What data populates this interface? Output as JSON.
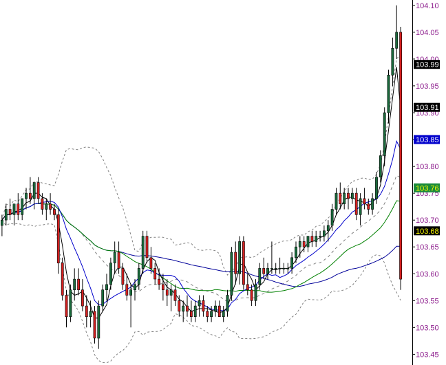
{
  "chart_data": {
    "type": "candlestick",
    "y_axis": {
      "position": "right",
      "range": [
        103.43,
        104.11
      ],
      "ticks": [
        "103.45",
        "103.50",
        "103.55",
        "103.60",
        "103.65",
        "103.70",
        "103.75",
        "103.80",
        "103.85",
        "103.90",
        "103.95",
        "104.00",
        "104.05",
        "104.10"
      ],
      "tick_values": [
        103.45,
        103.5,
        103.55,
        103.6,
        103.65,
        103.7,
        103.75,
        103.8,
        103.85,
        103.9,
        103.95,
        104.0,
        104.05,
        104.1
      ]
    },
    "grid": false,
    "colors": {
      "up_candle": "#1a6b3c",
      "down_candle": "#d42020",
      "axis_text": "#8b1a8b",
      "ma_fast": "#000000",
      "ma_mid_blue": "#0000cc",
      "ma_green": "#008000",
      "ma_slow_blue": "#000099",
      "bands": "#808080"
    },
    "price_labels": [
      {
        "text": "103.99",
        "value": 103.99,
        "bg": "#000000",
        "fg": "#ffffff"
      },
      {
        "text": "103.91",
        "value": 103.91,
        "bg": "#000000",
        "fg": "#ffffff"
      },
      {
        "text": "103.85",
        "value": 103.85,
        "bg": "#0000cc",
        "fg": "#ffffff"
      },
      {
        "text": "103.76",
        "value": 103.76,
        "bg": "#1a8a3a",
        "fg": "#ffff00"
      },
      {
        "text": "103.68",
        "value": 103.68,
        "bg": "#000000",
        "fg": "#ffff00"
      }
    ],
    "candles": [
      [
        103.69,
        103.71,
        103.67,
        103.7
      ],
      [
        103.7,
        103.73,
        103.69,
        103.72
      ],
      [
        103.72,
        103.74,
        103.7,
        103.71
      ],
      [
        103.71,
        103.73,
        103.69,
        103.73
      ],
      [
        103.73,
        103.75,
        103.7,
        103.71
      ],
      [
        103.71,
        103.74,
        103.7,
        103.74
      ],
      [
        103.74,
        103.76,
        103.72,
        103.75
      ],
      [
        103.75,
        103.78,
        103.73,
        103.74
      ],
      [
        103.74,
        103.77,
        103.72,
        103.77
      ],
      [
        103.77,
        103.78,
        103.73,
        103.74
      ],
      [
        103.74,
        103.75,
        103.71,
        103.72
      ],
      [
        103.72,
        103.74,
        103.7,
        103.73
      ],
      [
        103.73,
        103.75,
        103.71,
        103.72
      ],
      [
        103.72,
        103.73,
        103.7,
        103.71
      ],
      [
        103.71,
        103.72,
        103.6,
        103.62
      ],
      [
        103.62,
        103.63,
        103.55,
        103.56
      ],
      [
        103.56,
        103.57,
        103.5,
        103.52
      ],
      [
        103.52,
        103.58,
        103.51,
        103.57
      ],
      [
        103.57,
        103.61,
        103.55,
        103.59
      ],
      [
        103.59,
        103.61,
        103.56,
        103.57
      ],
      [
        103.57,
        103.59,
        103.53,
        103.54
      ],
      [
        103.54,
        103.56,
        103.5,
        103.52
      ],
      [
        103.52,
        103.55,
        103.5,
        103.53
      ],
      [
        103.53,
        103.54,
        103.47,
        103.48
      ],
      [
        103.48,
        103.55,
        103.46,
        103.54
      ],
      [
        103.54,
        103.58,
        103.53,
        103.57
      ],
      [
        103.57,
        103.6,
        103.55,
        103.58
      ],
      [
        103.58,
        103.63,
        103.57,
        103.62
      ],
      [
        103.62,
        103.66,
        103.6,
        103.64
      ],
      [
        103.64,
        103.66,
        103.6,
        103.61
      ],
      [
        103.61,
        103.62,
        103.57,
        103.58
      ],
      [
        103.58,
        103.6,
        103.55,
        103.56
      ],
      [
        103.56,
        103.58,
        103.5,
        103.57
      ],
      [
        103.57,
        103.59,
        103.55,
        103.58
      ],
      [
        103.58,
        103.62,
        103.57,
        103.61
      ],
      [
        103.61,
        103.68,
        103.6,
        103.67
      ],
      [
        103.67,
        103.68,
        103.62,
        103.63
      ],
      [
        103.63,
        103.65,
        103.6,
        103.61
      ],
      [
        103.61,
        103.62,
        103.58,
        103.59
      ],
      [
        103.59,
        103.61,
        103.57,
        103.58
      ],
      [
        103.58,
        103.6,
        103.55,
        103.57
      ],
      [
        103.57,
        103.59,
        103.54,
        103.56
      ],
      [
        103.56,
        103.58,
        103.53,
        103.57
      ],
      [
        103.57,
        103.58,
        103.54,
        103.55
      ],
      [
        103.55,
        103.56,
        103.52,
        103.53
      ],
      [
        103.53,
        103.55,
        103.51,
        103.54
      ],
      [
        103.54,
        103.56,
        103.52,
        103.53
      ],
      [
        103.53,
        103.55,
        103.51,
        103.52
      ],
      [
        103.52,
        103.55,
        103.51,
        103.54
      ],
      [
        103.54,
        103.56,
        103.52,
        103.55
      ],
      [
        103.55,
        103.56,
        103.52,
        103.53
      ],
      [
        103.53,
        103.54,
        103.51,
        103.52
      ],
      [
        103.52,
        103.54,
        103.51,
        103.53
      ],
      [
        103.53,
        103.55,
        103.52,
        103.54
      ],
      [
        103.54,
        103.55,
        103.52,
        103.52
      ],
      [
        103.52,
        103.54,
        103.51,
        103.53
      ],
      [
        103.53,
        103.57,
        103.52,
        103.56
      ],
      [
        103.56,
        103.65,
        103.55,
        103.64
      ],
      [
        103.64,
        103.66,
        103.58,
        103.6
      ],
      [
        103.6,
        103.67,
        103.58,
        103.66
      ],
      [
        103.66,
        103.67,
        103.57,
        103.58
      ],
      [
        103.58,
        103.6,
        103.56,
        103.57
      ],
      [
        103.57,
        103.58,
        103.54,
        103.55
      ],
      [
        103.55,
        103.59,
        103.54,
        103.58
      ],
      [
        103.58,
        103.62,
        103.57,
        103.61
      ],
      [
        103.61,
        103.63,
        103.59,
        103.6
      ],
      [
        103.6,
        103.62,
        103.59,
        103.61
      ],
      [
        103.61,
        103.66,
        103.6,
        103.61
      ],
      [
        103.61,
        103.62,
        103.6,
        103.61
      ],
      [
        103.61,
        103.63,
        103.6,
        103.61
      ],
      [
        103.61,
        103.62,
        103.6,
        103.61
      ],
      [
        103.61,
        103.62,
        103.6,
        103.61
      ],
      [
        103.61,
        103.64,
        103.6,
        103.63
      ],
      [
        103.63,
        103.66,
        103.62,
        103.65
      ],
      [
        103.65,
        103.67,
        103.63,
        103.66
      ],
      [
        103.66,
        103.67,
        103.64,
        103.65
      ],
      [
        103.65,
        103.67,
        103.64,
        103.67
      ],
      [
        103.67,
        103.68,
        103.65,
        103.66
      ],
      [
        103.66,
        103.68,
        103.65,
        103.67
      ],
      [
        103.67,
        103.68,
        103.66,
        103.67
      ],
      [
        103.67,
        103.69,
        103.66,
        103.68
      ],
      [
        103.68,
        103.7,
        103.66,
        103.69
      ],
      [
        103.69,
        103.73,
        103.68,
        103.72
      ],
      [
        103.72,
        103.76,
        103.71,
        103.75
      ],
      [
        103.75,
        103.77,
        103.72,
        103.73
      ],
      [
        103.73,
        103.76,
        103.72,
        103.75
      ],
      [
        103.75,
        103.76,
        103.72,
        103.74
      ],
      [
        103.74,
        103.76,
        103.73,
        103.75
      ],
      [
        103.75,
        103.76,
        103.7,
        103.71
      ],
      [
        103.71,
        103.75,
        103.69,
        103.74
      ],
      [
        103.74,
        103.76,
        103.72,
        103.73
      ],
      [
        103.73,
        103.74,
        103.71,
        103.72
      ],
      [
        103.72,
        103.75,
        103.71,
        103.74
      ],
      [
        103.74,
        103.79,
        103.73,
        103.78
      ],
      [
        103.78,
        103.83,
        103.77,
        103.82
      ],
      [
        103.82,
        103.91,
        103.8,
        103.9
      ],
      [
        103.9,
        103.98,
        103.88,
        103.97
      ],
      [
        103.97,
        104.04,
        103.95,
        104.02
      ],
      [
        104.02,
        104.1,
        104.0,
        104.05
      ],
      [
        104.05,
        104.06,
        103.57,
        103.59
      ]
    ]
  }
}
